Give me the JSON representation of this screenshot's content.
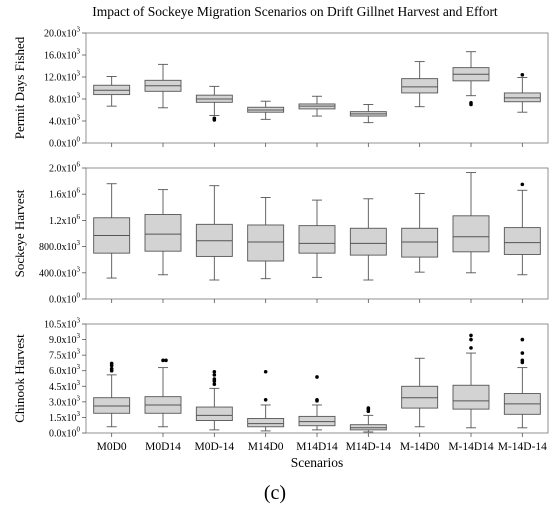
{
  "figure": {
    "title": "Impact of Sockeye Migration Scenarios on Drift Gillnet Harvest and Effort",
    "caption": "(c)",
    "xlabel": "Scenarios"
  },
  "style": {
    "box_fill": "#d3d3d3",
    "box_stroke": "#555555",
    "outlier_color": "#000000"
  },
  "chart_data": [
    {
      "type": "box",
      "ylabel": "Permit Days Fished",
      "ylim": [
        0,
        20000
      ],
      "yticks": [
        0,
        4000,
        8000,
        12000,
        16000,
        20000
      ],
      "yticklabels": [
        {
          "base": "0.0x10",
          "exp": "0"
        },
        {
          "base": "4.0x10",
          "exp": "3"
        },
        {
          "base": "8.0x10",
          "exp": "3"
        },
        {
          "base": "12.0x10",
          "exp": "3"
        },
        {
          "base": "16.0x10",
          "exp": "3"
        },
        {
          "base": "20.0x10",
          "exp": "3"
        }
      ],
      "categories": [
        "M0D0",
        "M0D14",
        "M0D-14",
        "M14D0",
        "M14D14",
        "M14D-14",
        "M-14D0",
        "M-14D14",
        "M-14D-14"
      ],
      "boxes": [
        {
          "whisker_low": 6700,
          "q1": 8800,
          "median": 9600,
          "q3": 10500,
          "whisker_high": 12100,
          "outliers": []
        },
        {
          "whisker_low": 6400,
          "q1": 9400,
          "median": 10400,
          "q3": 11400,
          "whisker_high": 14300,
          "outliers": []
        },
        {
          "whisker_low": 5000,
          "q1": 7400,
          "median": 8000,
          "q3": 8700,
          "whisker_high": 10300,
          "outliers": [
            4200,
            4500
          ]
        },
        {
          "whisker_low": 4300,
          "q1": 5600,
          "median": 6000,
          "q3": 6500,
          "whisker_high": 7600,
          "outliers": []
        },
        {
          "whisker_low": 4900,
          "q1": 6200,
          "median": 6700,
          "q3": 7100,
          "whisker_high": 8500,
          "outliers": []
        },
        {
          "whisker_low": 3700,
          "q1": 4900,
          "median": 5300,
          "q3": 5700,
          "whisker_high": 7000,
          "outliers": []
        },
        {
          "whisker_low": 6600,
          "q1": 9100,
          "median": 10200,
          "q3": 11700,
          "whisker_high": 14800,
          "outliers": []
        },
        {
          "whisker_low": 8600,
          "q1": 11300,
          "median": 12500,
          "q3": 13700,
          "whisker_high": 16600,
          "outliers": [
            7000,
            7300
          ]
        },
        {
          "whisker_low": 5600,
          "q1": 7500,
          "median": 8200,
          "q3": 9100,
          "whisker_high": 11900,
          "outliers": [
            12400
          ]
        }
      ]
    },
    {
      "type": "box",
      "ylabel": "Sockeye Harvest",
      "ylim": [
        0,
        2000000
      ],
      "yticks": [
        0,
        400000,
        800000,
        1200000,
        1600000,
        2000000
      ],
      "yticklabels": [
        {
          "base": "0.0x10",
          "exp": "0"
        },
        {
          "base": "400.0x10",
          "exp": "3"
        },
        {
          "base": "800.0x10",
          "exp": "3"
        },
        {
          "base": "1.2x10",
          "exp": "6"
        },
        {
          "base": "1.6x10",
          "exp": "6"
        },
        {
          "base": "2.0x10",
          "exp": "6"
        }
      ],
      "categories": [
        "M0D0",
        "M0D14",
        "M0D-14",
        "M14D0",
        "M14D14",
        "M14D-14",
        "M-14D0",
        "M-14D14",
        "M-14D-14"
      ],
      "boxes": [
        {
          "whisker_low": 320000,
          "q1": 700000,
          "median": 970000,
          "q3": 1240000,
          "whisker_high": 1760000,
          "outliers": []
        },
        {
          "whisker_low": 370000,
          "q1": 730000,
          "median": 990000,
          "q3": 1290000,
          "whisker_high": 1670000,
          "outliers": []
        },
        {
          "whisker_low": 290000,
          "q1": 650000,
          "median": 890000,
          "q3": 1140000,
          "whisker_high": 1730000,
          "outliers": []
        },
        {
          "whisker_low": 310000,
          "q1": 580000,
          "median": 870000,
          "q3": 1130000,
          "whisker_high": 1550000,
          "outliers": []
        },
        {
          "whisker_low": 330000,
          "q1": 700000,
          "median": 850000,
          "q3": 1120000,
          "whisker_high": 1510000,
          "outliers": []
        },
        {
          "whisker_low": 290000,
          "q1": 670000,
          "median": 850000,
          "q3": 1080000,
          "whisker_high": 1530000,
          "outliers": []
        },
        {
          "whisker_low": 410000,
          "q1": 640000,
          "median": 870000,
          "q3": 1080000,
          "whisker_high": 1610000,
          "outliers": []
        },
        {
          "whisker_low": 400000,
          "q1": 720000,
          "median": 950000,
          "q3": 1270000,
          "whisker_high": 1930000,
          "outliers": []
        },
        {
          "whisker_low": 370000,
          "q1": 680000,
          "median": 860000,
          "q3": 1090000,
          "whisker_high": 1660000,
          "outliers": [
            1750000
          ]
        }
      ]
    },
    {
      "type": "box",
      "ylabel": "Chinook Harvest",
      "ylim": [
        0,
        10500
      ],
      "yticks": [
        0,
        1500,
        3000,
        4500,
        6000,
        7500,
        9000,
        10500
      ],
      "yticklabels": [
        {
          "base": "0.0x10",
          "exp": "0"
        },
        {
          "base": "1.5x10",
          "exp": "3"
        },
        {
          "base": "3.0x10",
          "exp": "3"
        },
        {
          "base": "4.5x10",
          "exp": "3"
        },
        {
          "base": "6.0x10",
          "exp": "3"
        },
        {
          "base": "7.5x10",
          "exp": "3"
        },
        {
          "base": "9.0x10",
          "exp": "3"
        },
        {
          "base": "10.5x10",
          "exp": "3"
        }
      ],
      "categories": [
        "M0D0",
        "M0D14",
        "M0D-14",
        "M14D0",
        "M14D14",
        "M14D-14",
        "M-14D0",
        "M-14D14",
        "M-14D-14"
      ],
      "boxes": [
        {
          "whisker_low": 600,
          "q1": 1900,
          "median": 2600,
          "q3": 3400,
          "whisker_high": 5600,
          "outliers": [
            6000,
            6200,
            6500,
            6700
          ]
        },
        {
          "whisker_low": 600,
          "q1": 1900,
          "median": 2700,
          "q3": 3500,
          "whisker_high": 6300,
          "outliers": [
            7000,
            7000
          ]
        },
        {
          "whisker_low": 300,
          "q1": 1200,
          "median": 1700,
          "q3": 2500,
          "whisker_high": 4300,
          "outliers": [
            4700,
            5000,
            5200,
            5600,
            5900
          ]
        },
        {
          "whisker_low": 200,
          "q1": 600,
          "median": 900,
          "q3": 1400,
          "whisker_high": 2700,
          "outliers": [
            3200,
            5900
          ]
        },
        {
          "whisker_low": 300,
          "q1": 700,
          "median": 1100,
          "q3": 1600,
          "whisker_high": 2700,
          "outliers": [
            3100,
            3200,
            5400
          ]
        },
        {
          "whisker_low": 100,
          "q1": 300,
          "median": 500,
          "q3": 800,
          "whisker_high": 1700,
          "outliers": [
            2100,
            2300,
            2400
          ]
        },
        {
          "whisker_low": 600,
          "q1": 2400,
          "median": 3400,
          "q3": 4500,
          "whisker_high": 7200,
          "outliers": []
        },
        {
          "whisker_low": 500,
          "q1": 2300,
          "median": 3100,
          "q3": 4600,
          "whisker_high": 7700,
          "outliers": [
            8200,
            9000,
            9400
          ]
        },
        {
          "whisker_low": 500,
          "q1": 1800,
          "median": 2800,
          "q3": 3800,
          "whisker_high": 6300,
          "outliers": [
            6800,
            7000,
            7700,
            9000
          ]
        }
      ]
    }
  ]
}
